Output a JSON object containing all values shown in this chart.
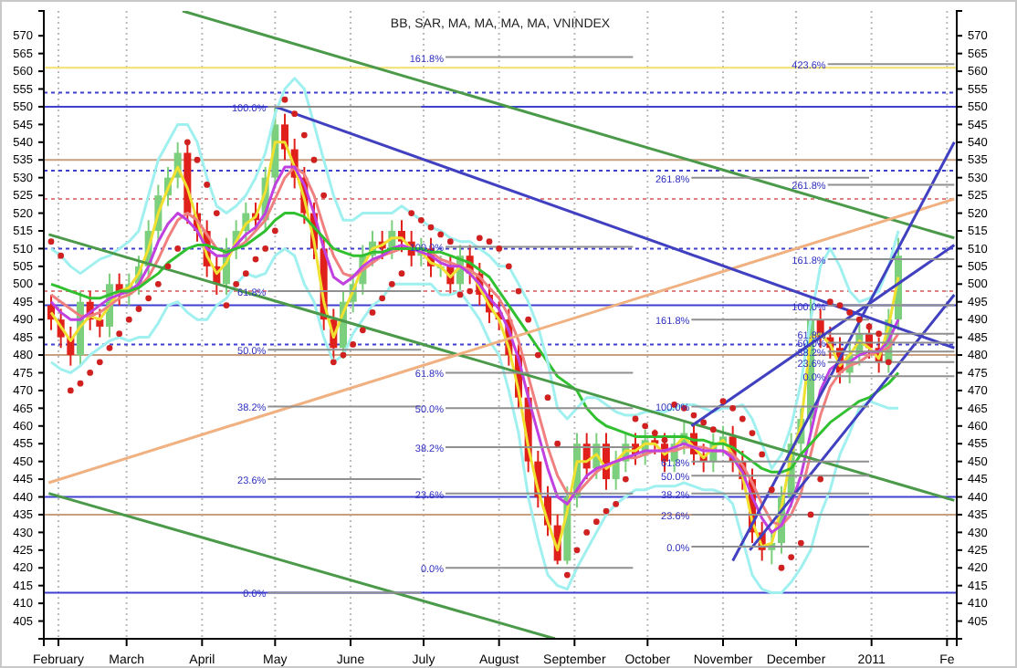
{
  "chart_data": {
    "type": "candlestick",
    "title": "BB, SAR, MA, MA, MA, MA, VNINDEX",
    "x": [
      "2010-01-29",
      "2010-02-02",
      "2010-02-06",
      "2010-02-10",
      "2010-02-14",
      "2010-02-18",
      "2010-02-22",
      "2010-02-26",
      "2010-03-02",
      "2010-03-06",
      "2010-03-10",
      "2010-03-14",
      "2010-03-18",
      "2010-03-22",
      "2010-03-26",
      "2010-03-30",
      "2010-04-03",
      "2010-04-07",
      "2010-04-11",
      "2010-04-15",
      "2010-04-19",
      "2010-04-23",
      "2010-04-27",
      "2010-05-01",
      "2010-05-05",
      "2010-05-09",
      "2010-05-13",
      "2010-05-17",
      "2010-05-21",
      "2010-05-25",
      "2010-05-29",
      "2010-06-02",
      "2010-06-06",
      "2010-06-10",
      "2010-06-14",
      "2010-06-18",
      "2010-06-22",
      "2010-06-26",
      "2010-06-30",
      "2010-07-04",
      "2010-07-08",
      "2010-07-12",
      "2010-07-16",
      "2010-07-20",
      "2010-07-24",
      "2010-07-28",
      "2010-08-01",
      "2010-08-05",
      "2010-08-09",
      "2010-08-13",
      "2010-08-17",
      "2010-08-21",
      "2010-08-25",
      "2010-08-29",
      "2010-09-02",
      "2010-09-06",
      "2010-09-10",
      "2010-09-14",
      "2010-09-18",
      "2010-09-22",
      "2010-09-26",
      "2010-09-30",
      "2010-10-04",
      "2010-10-08",
      "2010-10-12",
      "2010-10-16",
      "2010-10-20",
      "2010-10-24",
      "2010-10-28",
      "2010-11-01",
      "2010-11-05",
      "2010-11-09",
      "2010-11-13",
      "2010-11-17",
      "2010-11-21",
      "2010-11-25",
      "2010-11-29",
      "2010-12-03",
      "2010-12-07",
      "2010-12-11",
      "2010-12-15",
      "2010-12-19",
      "2010-12-23",
      "2010-12-27",
      "2010-12-31",
      "2011-01-04",
      "2011-01-08",
      "2011-01-12"
    ],
    "ohlc": [
      [
        494,
        497,
        487,
        490
      ],
      [
        490,
        493,
        482,
        485
      ],
      [
        485,
        488,
        477,
        480
      ],
      [
        480,
        498,
        477,
        495
      ],
      [
        495,
        498,
        487,
        490
      ],
      [
        490,
        493,
        485,
        488
      ],
      [
        488,
        503,
        485,
        500
      ],
      [
        500,
        503,
        494,
        497
      ],
      [
        497,
        503,
        494,
        500
      ],
      [
        500,
        508,
        497,
        505
      ],
      [
        505,
        518,
        502,
        515
      ],
      [
        515,
        528,
        512,
        525
      ],
      [
        525,
        533,
        522,
        530
      ],
      [
        530,
        540,
        527,
        537
      ],
      [
        537,
        540,
        517,
        520
      ],
      [
        520,
        523,
        512,
        515
      ],
      [
        515,
        518,
        502,
        505
      ],
      [
        505,
        508,
        497,
        500
      ],
      [
        500,
        513,
        497,
        510
      ],
      [
        510,
        518,
        507,
        515
      ],
      [
        515,
        523,
        512,
        520
      ],
      [
        520,
        523,
        515,
        518
      ],
      [
        518,
        533,
        515,
        530
      ],
      [
        530,
        550,
        527,
        545
      ],
      [
        545,
        548,
        535,
        538
      ],
      [
        538,
        541,
        527,
        530
      ],
      [
        530,
        533,
        517,
        520
      ],
      [
        520,
        523,
        507,
        510
      ],
      [
        510,
        513,
        487,
        490
      ],
      [
        490,
        493,
        479,
        482
      ],
      [
        482,
        498,
        479,
        495
      ],
      [
        495,
        503,
        492,
        500
      ],
      [
        500,
        511,
        497,
        508
      ],
      [
        508,
        515,
        505,
        512
      ],
      [
        512,
        515,
        507,
        510
      ],
      [
        510,
        518,
        507,
        515
      ],
      [
        515,
        518,
        509,
        512
      ],
      [
        512,
        515,
        505,
        508
      ],
      [
        508,
        513,
        505,
        510
      ],
      [
        510,
        513,
        502,
        505
      ],
      [
        505,
        508,
        502,
        505
      ],
      [
        505,
        508,
        497,
        500
      ],
      [
        500,
        511,
        497,
        508
      ],
      [
        508,
        511,
        500,
        503
      ],
      [
        503,
        506,
        494,
        497
      ],
      [
        497,
        500,
        489,
        492
      ],
      [
        492,
        495,
        487,
        490
      ],
      [
        490,
        493,
        477,
        480
      ],
      [
        480,
        483,
        465,
        468
      ],
      [
        468,
        471,
        447,
        450
      ],
      [
        450,
        453,
        437,
        440
      ],
      [
        440,
        443,
        429,
        432
      ],
      [
        432,
        435,
        421,
        422
      ],
      [
        422,
        443,
        421,
        440
      ],
      [
        440,
        458,
        437,
        455
      ],
      [
        455,
        458,
        445,
        448
      ],
      [
        448,
        458,
        445,
        455
      ],
      [
        455,
        458,
        442,
        445
      ],
      [
        445,
        453,
        442,
        450
      ],
      [
        450,
        458,
        447,
        455
      ],
      [
        455,
        458,
        449,
        452
      ],
      [
        452,
        459,
        449,
        456
      ],
      [
        456,
        459,
        452,
        455
      ],
      [
        455,
        458,
        447,
        450
      ],
      [
        450,
        458,
        447,
        455
      ],
      [
        455,
        461,
        452,
        458
      ],
      [
        458,
        461,
        449,
        452
      ],
      [
        452,
        455,
        447,
        450
      ],
      [
        450,
        458,
        447,
        455
      ],
      [
        455,
        460,
        452,
        457
      ],
      [
        457,
        460,
        447,
        450
      ],
      [
        450,
        453,
        442,
        445
      ],
      [
        445,
        448,
        427,
        430
      ],
      [
        430,
        433,
        422,
        425
      ],
      [
        425,
        430,
        421,
        427
      ],
      [
        427,
        443,
        424,
        440
      ],
      [
        440,
        458,
        437,
        455
      ],
      [
        455,
        465,
        452,
        462
      ],
      [
        462,
        496,
        459,
        490
      ],
      [
        490,
        493,
        482,
        485
      ],
      [
        485,
        488,
        479,
        482
      ],
      [
        482,
        485,
        472,
        475
      ],
      [
        475,
        483,
        472,
        480
      ],
      [
        480,
        489,
        477,
        486
      ],
      [
        486,
        489,
        479,
        482
      ],
      [
        482,
        485,
        475,
        478
      ],
      [
        478,
        493,
        475,
        490
      ],
      [
        490,
        513,
        487,
        508
      ]
    ],
    "colors": [
      "#e0201b",
      "#e0201b",
      "#e0201b",
      "#7ccf7c",
      "#e0201b",
      "#e0201b",
      "#7ccf7c",
      "#e0201b",
      "#7ccf7c",
      "#7ccf7c",
      "#7ccf7c",
      "#7ccf7c",
      "#7ccf7c",
      "#7ccf7c",
      "#e0201b",
      "#e0201b",
      "#e0201b",
      "#e0201b",
      "#7ccf7c",
      "#7ccf7c",
      "#7ccf7c",
      "#e0201b",
      "#7ccf7c",
      "#7ccf7c",
      "#e0201b",
      "#e0201b",
      "#e0201b",
      "#e0201b",
      "#e0201b",
      "#e0201b",
      "#7ccf7c",
      "#7ccf7c",
      "#7ccf7c",
      "#7ccf7c",
      "#e0201b",
      "#7ccf7c",
      "#e0201b",
      "#e0201b",
      "#7ccf7c",
      "#e0201b",
      "#7ccf7c",
      "#e0201b",
      "#7ccf7c",
      "#e0201b",
      "#e0201b",
      "#e0201b",
      "#e0201b",
      "#e0201b",
      "#e0201b",
      "#e0201b",
      "#e0201b",
      "#e0201b",
      "#e0201b",
      "#7ccf7c",
      "#7ccf7c",
      "#e0201b",
      "#7ccf7c",
      "#e0201b",
      "#7ccf7c",
      "#7ccf7c",
      "#e0201b",
      "#7ccf7c",
      "#e0201b",
      "#e0201b",
      "#7ccf7c",
      "#7ccf7c",
      "#e0201b",
      "#e0201b",
      "#7ccf7c",
      "#7ccf7c",
      "#e0201b",
      "#e0201b",
      "#e0201b",
      "#e0201b",
      "#7ccf7c",
      "#7ccf7c",
      "#7ccf7c",
      "#7ccf7c",
      "#7ccf7c",
      "#e0201b",
      "#e0201b",
      "#e0201b",
      "#7ccf7c",
      "#7ccf7c",
      "#e0201b",
      "#e0201b",
      "#7ccf7c",
      "#7ccf7c"
    ],
    "xlim": [
      "2010-01-26",
      "2011-02-05"
    ],
    "xticks": [
      {
        "value": "2010-02-01",
        "label": "February"
      },
      {
        "value": "2010-03-01",
        "label": "March"
      },
      {
        "value": "2010-04-01",
        "label": "April"
      },
      {
        "value": "2010-05-01",
        "label": "May"
      },
      {
        "value": "2010-06-01",
        "label": "June"
      },
      {
        "value": "2010-07-01",
        "label": "July"
      },
      {
        "value": "2010-08-01",
        "label": "August"
      },
      {
        "value": "2010-09-01",
        "label": "September"
      },
      {
        "value": "2010-10-01",
        "label": "October"
      },
      {
        "value": "2010-11-01",
        "label": "November"
      },
      {
        "value": "2010-12-01",
        "label": "December"
      },
      {
        "value": "2011-01-01",
        "label": "2011"
      },
      {
        "value": "2011-02-01",
        "label": "Fe"
      }
    ],
    "ylim": [
      400,
      577
    ],
    "yticks": [
      405,
      410,
      415,
      420,
      425,
      430,
      435,
      440,
      445,
      450,
      455,
      460,
      465,
      470,
      475,
      480,
      485,
      490,
      495,
      500,
      505,
      510,
      515,
      520,
      525,
      530,
      535,
      540,
      545,
      550,
      555,
      560,
      565,
      570
    ],
    "y2lim": [
      400,
      577
    ],
    "y2ticks": [
      405,
      410,
      415,
      420,
      425,
      430,
      435,
      440,
      445,
      450,
      455,
      460,
      465,
      470,
      475,
      480,
      485,
      490,
      495,
      500,
      505,
      510,
      515,
      520,
      525,
      530,
      535,
      540,
      545,
      550,
      555,
      560,
      565,
      570
    ],
    "grid": "x",
    "ref_lines": [
      {
        "axis": "y",
        "value": 561,
        "color": "#f0e070",
        "line_style": "solid"
      },
      {
        "axis": "y",
        "value": 554,
        "color": "#4040d0",
        "line_style": "dotted"
      },
      {
        "axis": "y",
        "value": 550,
        "color": "#4040d0",
        "line_style": "solid"
      },
      {
        "axis": "y",
        "value": 535,
        "color": "#c8a080",
        "line_style": "solid"
      },
      {
        "axis": "y",
        "value": 532,
        "color": "#4040d0",
        "line_style": "dotted"
      },
      {
        "axis": "y",
        "value": 524,
        "color": "#e08080",
        "line_style": "dotted"
      },
      {
        "axis": "y",
        "value": 510,
        "color": "#4040d0",
        "line_style": "dotted"
      },
      {
        "axis": "y",
        "value": 498,
        "color": "#e08080",
        "line_style": "dotted"
      },
      {
        "axis": "y",
        "value": 494,
        "color": "#4040d0",
        "line_style": "solid"
      },
      {
        "axis": "y",
        "value": 483,
        "color": "#4040d0",
        "line_style": "dotted"
      },
      {
        "axis": "y",
        "value": 480,
        "color": "#c8a080",
        "line_style": "solid"
      },
      {
        "axis": "y",
        "value": 440,
        "color": "#4040d0",
        "line_style": "solid"
      },
      {
        "axis": "y",
        "value": 435,
        "color": "#c8a080",
        "line_style": "solid"
      },
      {
        "axis": "y",
        "value": 413,
        "color": "#4040d0",
        "line_style": "solid"
      }
    ],
    "series": [
      {
        "type": "line",
        "color": "#f0e030",
        "values": [
          492,
          488,
          484,
          488,
          491,
          490,
          494,
          498,
          499,
          503,
          510,
          520,
          527,
          533,
          527,
          518,
          508,
          503,
          506,
          512,
          517,
          519,
          526,
          540,
          540,
          533,
          524,
          512,
          495,
          485,
          492,
          498,
          505,
          510,
          511,
          513,
          513,
          510,
          509,
          506,
          505,
          502,
          505,
          504,
          499,
          494,
          490,
          482,
          470,
          454,
          442,
          433,
          425,
          436,
          450,
          450,
          452,
          448,
          450,
          453,
          453,
          455,
          455,
          452,
          454,
          457,
          454,
          451,
          454,
          456,
          452,
          446,
          433,
          426,
          427,
          437,
          452,
          460,
          485,
          486,
          483,
          477,
          480,
          484,
          482,
          479,
          488,
          502
        ]
      },
      {
        "type": "line",
        "color": "#f08080",
        "values": [
          497,
          495,
          493,
          491,
          491,
          492,
          494,
          496,
          497,
          499,
          502,
          507,
          513,
          518,
          520,
          518,
          514,
          510,
          509,
          510,
          512,
          515,
          518,
          524,
          530,
          533,
          531,
          525,
          516,
          508,
          503,
          502,
          504,
          506,
          508,
          509,
          510,
          510,
          510,
          509,
          507,
          506,
          505,
          504,
          502,
          499,
          496,
          491,
          484,
          474,
          464,
          454,
          446,
          441,
          441,
          444,
          447,
          449,
          450,
          451,
          451,
          452,
          453,
          453,
          453,
          454,
          454,
          454,
          453,
          453,
          452,
          449,
          444,
          438,
          433,
          432,
          435,
          441,
          452,
          463,
          471,
          475,
          477,
          478,
          480,
          481,
          482,
          486
        ]
      },
      {
        "type": "line",
        "color": "#c040e0",
        "values": [
          495,
          492,
          490,
          490,
          492,
          494,
          496,
          497,
          498,
          500,
          505,
          512,
          517,
          520,
          518,
          515,
          510,
          508,
          508,
          511,
          514,
          516,
          520,
          528,
          533,
          533,
          528,
          520,
          510,
          502,
          500,
          502,
          505,
          507,
          508,
          510,
          511,
          510,
          509,
          508,
          506,
          505,
          505,
          503,
          500,
          496,
          493,
          487,
          479,
          468,
          458,
          448,
          440,
          438,
          442,
          446,
          448,
          449,
          450,
          451,
          452,
          453,
          453,
          453,
          454,
          455,
          454,
          453,
          453,
          453,
          451,
          447,
          440,
          434,
          430,
          432,
          438,
          446,
          458,
          470,
          476,
          478,
          478,
          480,
          481,
          481,
          484,
          490
        ]
      },
      {
        "type": "line",
        "color": "#30c030",
        "values": [
          500,
          499,
          498,
          497,
          496,
          496,
          497,
          498,
          498,
          499,
          501,
          503,
          506,
          508,
          510,
          511,
          511,
          510,
          509,
          510,
          511,
          513,
          515,
          518,
          520,
          520,
          519,
          516,
          513,
          510,
          509,
          508,
          508,
          509,
          509,
          510,
          510,
          510,
          510,
          509,
          509,
          508,
          507,
          506,
          504,
          502,
          498,
          494,
          490,
          486,
          482,
          478,
          474,
          472,
          470,
          465,
          462,
          460,
          459,
          458,
          457,
          457,
          457,
          457,
          457,
          457,
          456,
          456,
          455,
          455,
          454,
          452,
          450,
          448,
          447,
          447,
          448,
          452,
          455,
          458,
          461,
          463,
          465,
          467,
          468,
          470,
          472,
          475
        ]
      },
      {
        "type": "line",
        "color": "#a0f0f0",
        "values": [
          510,
          508,
          505,
          503,
          505,
          507,
          508,
          510,
          512,
          515,
          525,
          535,
          540,
          545,
          545,
          540,
          530,
          522,
          520,
          522,
          525,
          530,
          537,
          548,
          555,
          558,
          555,
          545,
          535,
          525,
          518,
          518,
          520,
          520,
          520,
          520,
          522,
          520,
          518,
          516,
          515,
          513,
          512,
          512,
          510,
          508,
          505,
          505,
          500,
          495,
          488,
          478,
          465,
          462,
          465,
          468,
          468,
          466,
          464,
          463,
          463,
          464,
          464,
          464,
          465,
          466,
          466,
          465,
          464,
          465,
          465,
          466,
          462,
          455,
          448,
          452,
          460,
          472,
          490,
          505,
          510,
          505,
          498,
          495,
          496,
          498,
          505,
          515
        ]
      },
      {
        "type": "line",
        "color": "#a0f0f0",
        "values": [
          478,
          476,
          475,
          477,
          480,
          482,
          484,
          485,
          484,
          485,
          485,
          489,
          494,
          495,
          492,
          490,
          490,
          494,
          496,
          500,
          503,
          502,
          503,
          508,
          510,
          508,
          500,
          495,
          485,
          478,
          480,
          486,
          490,
          494,
          496,
          500,
          500,
          500,
          500,
          500,
          497,
          497,
          498,
          494,
          490,
          484,
          480,
          470,
          458,
          440,
          428,
          418,
          415,
          414,
          420,
          425,
          430,
          435,
          438,
          440,
          442,
          442,
          443,
          443,
          443,
          444,
          443,
          442,
          442,
          441,
          438,
          428,
          418,
          414,
          413,
          413,
          416,
          420,
          425,
          435,
          442,
          452,
          458,
          465,
          467,
          466,
          465,
          465
        ]
      },
      {
        "type": "scatter",
        "marker": "circle",
        "color": "#d02020",
        "values": [
          512,
          508,
          470,
          472,
          475,
          478,
          482,
          486,
          490,
          493,
          496,
          500,
          505,
          510,
          540,
          535,
          528,
          520,
          494,
          500,
          503,
          507,
          510,
          515,
          552,
          548,
          542,
          535,
          525,
          478,
          480,
          483,
          487,
          492,
          496,
          500,
          503,
          520,
          518,
          516,
          514,
          512,
          497,
          498,
          513,
          512,
          510,
          505,
          498,
          490,
          480,
          468,
          455,
          418,
          425,
          430,
          433,
          436,
          438,
          445,
          462,
          460,
          458,
          456,
          466,
          465,
          463,
          461,
          459,
          467,
          465,
          462,
          458,
          452,
          442,
          420,
          423,
          427,
          435,
          445,
          495,
          494,
          492,
          490,
          488,
          486,
          478,
          null
        ]
      },
      {
        "type": "line",
        "color": "#4a9a4a",
        "x": [
          "2010-03-24",
          "2011-02-04"
        ],
        "values": [
          577,
          513
        ]
      },
      {
        "type": "line",
        "color": "#4a9a4a",
        "x": [
          "2010-01-28",
          "2011-02-04"
        ],
        "values": [
          514,
          439
        ]
      },
      {
        "type": "line",
        "color": "#4a9a4a",
        "x": [
          "2010-01-28",
          "2010-08-24"
        ],
        "values": [
          441,
          400
        ]
      },
      {
        "type": "line",
        "color": "#f0b080",
        "x": [
          "2010-01-28",
          "2011-02-04"
        ],
        "values": [
          444,
          524
        ]
      },
      {
        "type": "line",
        "color": "#4040c0",
        "x": [
          "2010-05-01",
          "2011-02-04"
        ],
        "values": [
          550,
          482
        ]
      },
      {
        "type": "line",
        "color": "#4040c0",
        "x": [
          "2010-11-05",
          "2011-02-04"
        ],
        "values": [
          422,
          540
        ]
      },
      {
        "type": "line",
        "color": "#4040c0",
        "x": [
          "2010-10-19",
          "2011-02-04"
        ],
        "values": [
          460,
          511
        ]
      },
      {
        "type": "line",
        "color": "#4040c0",
        "x": [
          "2010-11-12",
          "2011-02-04"
        ],
        "values": [
          425,
          497
        ]
      },
      {
        "type": "line",
        "name": "100.0%",
        "color": "#909090",
        "x": [
          "2010-04-28",
          "2010-06-30"
        ],
        "values": [
          550,
          550
        ]
      },
      {
        "type": "line",
        "name": "61.8%",
        "color": "#909090",
        "x": [
          "2010-04-28",
          "2010-06-30"
        ],
        "values": [
          498,
          498
        ]
      },
      {
        "type": "line",
        "name": "50.0%",
        "color": "#909090",
        "x": [
          "2010-04-28",
          "2010-06-30"
        ],
        "values": [
          481.5,
          481.5
        ]
      },
      {
        "type": "line",
        "name": "38.2%",
        "color": "#909090",
        "x": [
          "2010-04-28",
          "2010-06-30"
        ],
        "values": [
          465.5,
          465.5
        ]
      },
      {
        "type": "line",
        "name": "23.6%",
        "color": "#909090",
        "x": [
          "2010-04-28",
          "2010-06-30"
        ],
        "values": [
          445,
          445
        ]
      },
      {
        "type": "line",
        "name": "0.0%",
        "color": "#909090",
        "x": [
          "2010-04-28",
          "2010-06-30"
        ],
        "values": [
          413,
          413
        ]
      },
      {
        "type": "line",
        "name": "161.8%",
        "color": "#909090",
        "x": [
          "2010-07-10",
          "2010-09-25"
        ],
        "values": [
          564,
          564
        ]
      },
      {
        "type": "line",
        "name": "100.0%",
        "color": "#909090",
        "x": [
          "2010-07-10",
          "2010-09-25"
        ],
        "values": [
          510.5,
          510.5
        ]
      },
      {
        "type": "line",
        "name": "61.8%",
        "color": "#909090",
        "x": [
          "2010-07-10",
          "2010-09-25"
        ],
        "values": [
          475,
          475
        ]
      },
      {
        "type": "line",
        "name": "50.0%",
        "color": "#909090",
        "x": [
          "2010-07-10",
          "2010-09-25"
        ],
        "values": [
          465,
          465
        ]
      },
      {
        "type": "line",
        "name": "38.2%",
        "color": "#909090",
        "x": [
          "2010-07-10",
          "2010-09-25"
        ],
        "values": [
          454,
          454
        ]
      },
      {
        "type": "line",
        "name": "23.6%",
        "color": "#909090",
        "x": [
          "2010-07-10",
          "2010-09-25"
        ],
        "values": [
          441,
          441
        ]
      },
      {
        "type": "line",
        "name": "0.0%",
        "color": "#909090",
        "x": [
          "2010-07-10",
          "2010-09-25"
        ],
        "values": [
          420,
          420
        ]
      },
      {
        "type": "line",
        "name": "261.8%",
        "color": "#909090",
        "x": [
          "2010-10-19",
          "2010-12-31"
        ],
        "values": [
          530,
          530
        ]
      },
      {
        "type": "line",
        "name": "161.8%",
        "color": "#909090",
        "x": [
          "2010-10-19",
          "2010-12-31"
        ],
        "values": [
          490,
          490
        ]
      },
      {
        "type": "line",
        "name": "100.0%",
        "color": "#909090",
        "x": [
          "2010-10-19",
          "2010-12-31"
        ],
        "values": [
          465.5,
          465.5
        ]
      },
      {
        "type": "line",
        "name": "61.8%",
        "color": "#909090",
        "x": [
          "2010-10-19",
          "2010-12-31"
        ],
        "values": [
          450,
          450
        ]
      },
      {
        "type": "line",
        "name": "50.0%",
        "color": "#909090",
        "x": [
          "2010-10-19",
          "2010-12-31"
        ],
        "values": [
          446,
          446
        ]
      },
      {
        "type": "line",
        "name": "38.2%",
        "color": "#909090",
        "x": [
          "2010-10-19",
          "2010-12-31"
        ],
        "values": [
          441,
          441
        ]
      },
      {
        "type": "line",
        "name": "23.6%",
        "color": "#909090",
        "x": [
          "2010-10-19",
          "2010-12-31"
        ],
        "values": [
          435,
          435
        ]
      },
      {
        "type": "line",
        "name": "0.0%",
        "color": "#909090",
        "x": [
          "2010-10-19",
          "2010-12-31"
        ],
        "values": [
          426,
          426
        ]
      },
      {
        "type": "line",
        "name": "423.6%",
        "color": "#909090",
        "x": [
          "2010-12-14",
          "2011-02-04"
        ],
        "values": [
          562,
          562
        ]
      },
      {
        "type": "line",
        "name": "261.8%",
        "color": "#909090",
        "x": [
          "2010-12-14",
          "2011-02-04"
        ],
        "values": [
          528,
          528
        ]
      },
      {
        "type": "line",
        "name": "161.8%",
        "color": "#909090",
        "x": [
          "2010-12-14",
          "2011-02-04"
        ],
        "values": [
          507,
          507
        ]
      },
      {
        "type": "line",
        "name": "100.0%",
        "color": "#909090",
        "x": [
          "2010-12-14",
          "2011-02-04"
        ],
        "values": [
          494,
          494
        ]
      },
      {
        "type": "line",
        "name": "61.8%",
        "color": "#909090",
        "x": [
          "2010-12-14",
          "2011-02-04"
        ],
        "values": [
          486,
          486
        ]
      },
      {
        "type": "line",
        "name": "50.0%",
        "color": "#909090",
        "x": [
          "2010-12-14",
          "2011-02-04"
        ],
        "values": [
          483.5,
          483.5
        ]
      },
      {
        "type": "line",
        "name": "38.2%",
        "color": "#909090",
        "x": [
          "2010-12-14",
          "2011-02-04"
        ],
        "values": [
          481,
          481
        ]
      },
      {
        "type": "line",
        "name": "23.6%",
        "color": "#909090",
        "x": [
          "2010-12-14",
          "2011-02-04"
        ],
        "values": [
          478,
          478
        ]
      },
      {
        "type": "line",
        "name": "0.0%",
        "color": "#909090",
        "x": [
          "2010-12-14",
          "2011-02-04"
        ],
        "values": [
          474,
          474
        ]
      }
    ]
  }
}
